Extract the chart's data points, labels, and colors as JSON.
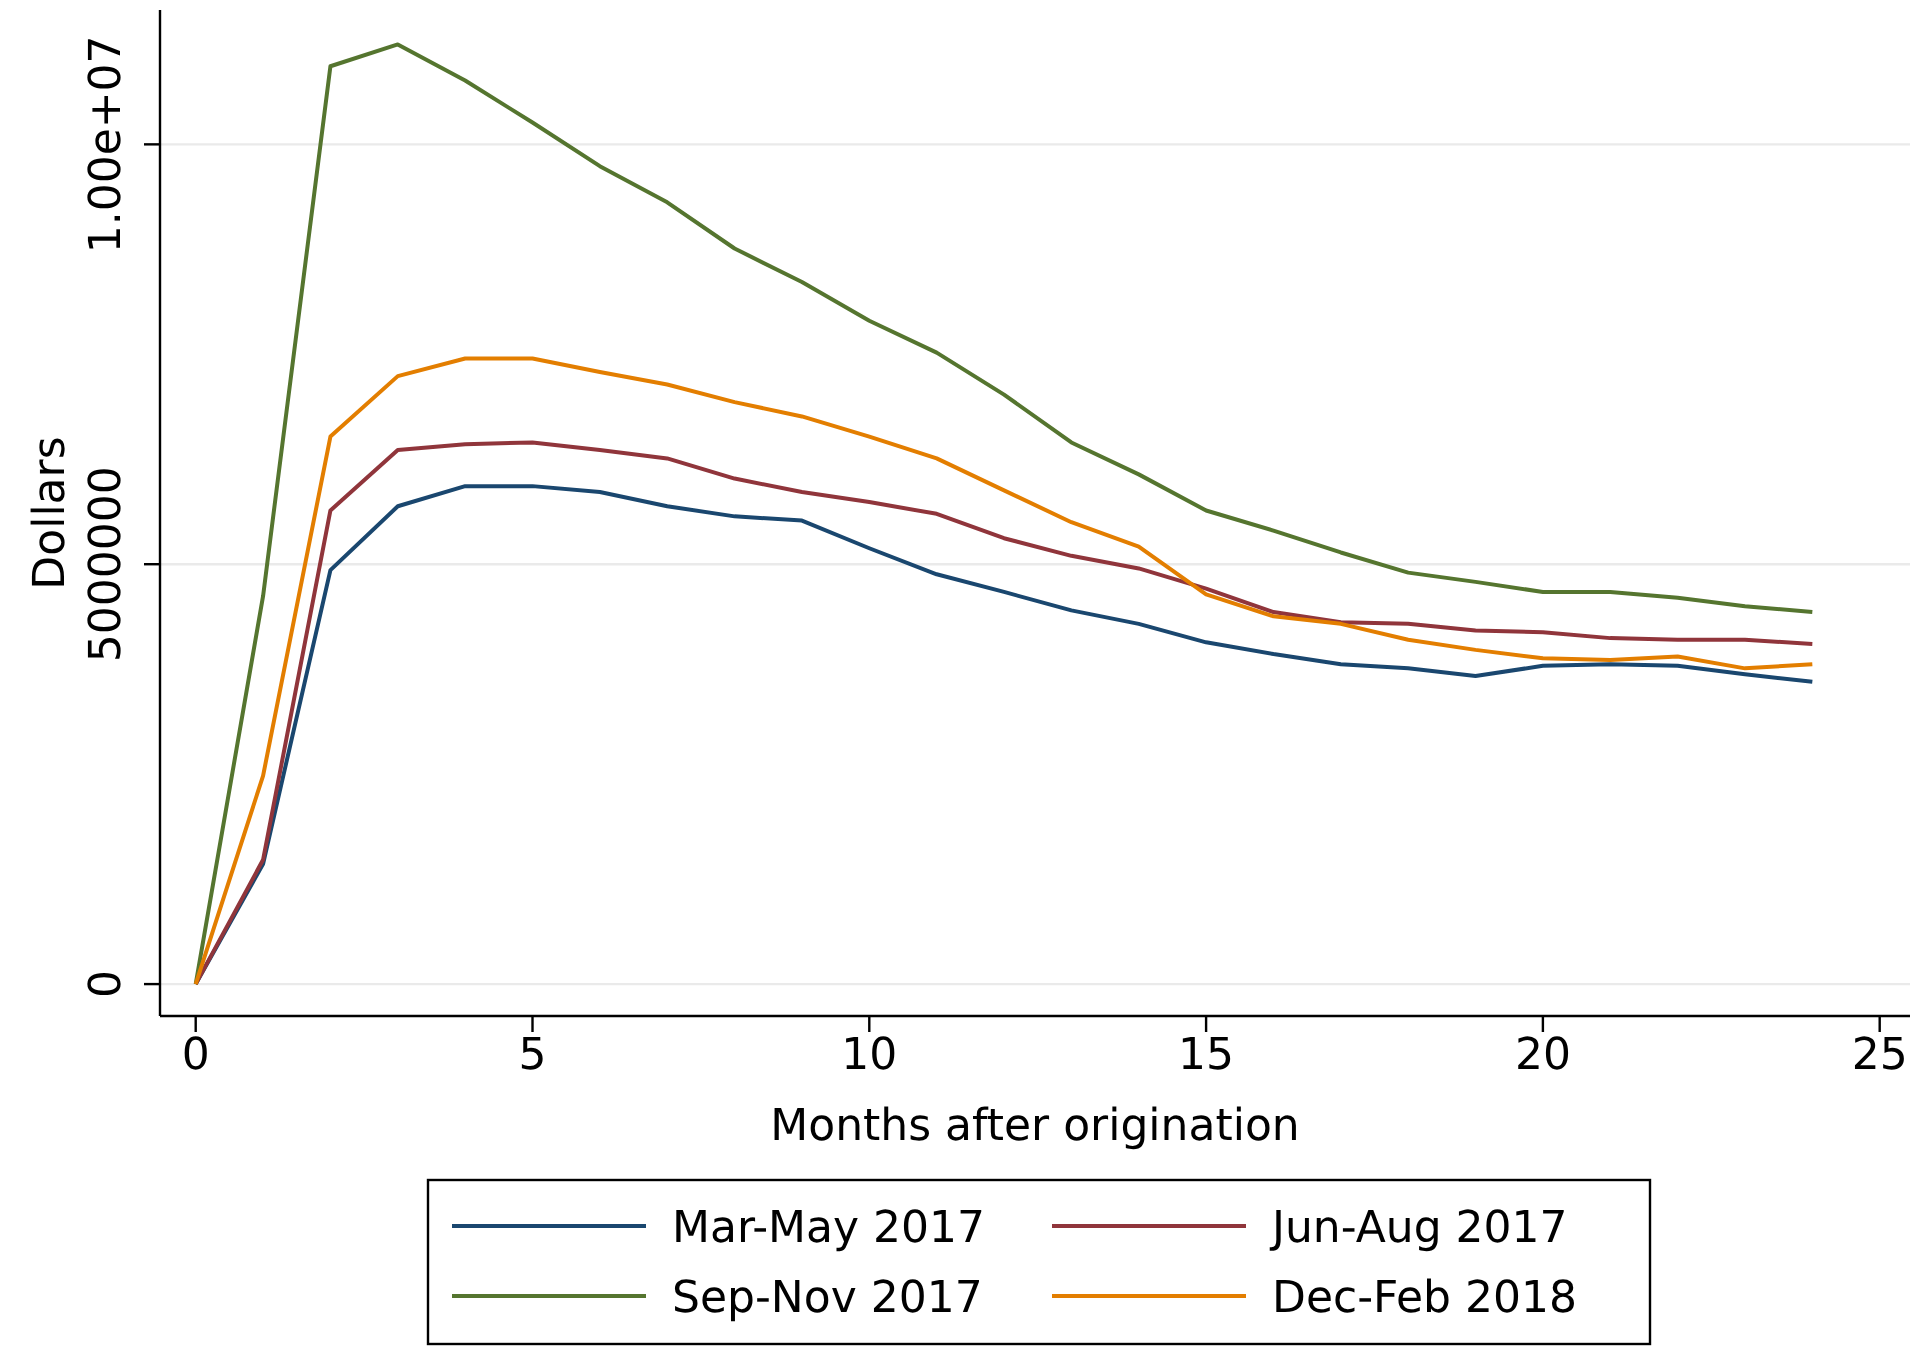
{
  "chart_data": {
    "type": "line",
    "xlabel": "Months after origination",
    "ylabel": "Dollars",
    "x": [
      0,
      1,
      2,
      3,
      4,
      5,
      6,
      7,
      8,
      9,
      10,
      11,
      12,
      13,
      14,
      15,
      16,
      17,
      18,
      19,
      20,
      21,
      22,
      23,
      24
    ],
    "series": [
      {
        "name": "Mar-May 2017",
        "color": "#1a476f",
        "values": [
          0,
          1430000,
          4930000,
          5690000,
          5930000,
          5930000,
          5860000,
          5690000,
          5570000,
          5520000,
          5190000,
          4880000,
          4670000,
          4450000,
          4290000,
          4070000,
          3930000,
          3810000,
          3760000,
          3670000,
          3790000,
          3810000,
          3790000,
          3690000,
          3600000
        ]
      },
      {
        "name": "Jun-Aug 2017",
        "color": "#90353b",
        "values": [
          0,
          1480000,
          5640000,
          6360000,
          6430000,
          6450000,
          6360000,
          6260000,
          6020000,
          5860000,
          5740000,
          5600000,
          5310000,
          5100000,
          4950000,
          4710000,
          4430000,
          4310000,
          4290000,
          4210000,
          4190000,
          4120000,
          4100000,
          4100000,
          4050000
        ]
      },
      {
        "name": "Sep-Nov 2017",
        "color": "#55752f",
        "values": [
          0,
          4620000,
          10930000,
          11190000,
          10760000,
          10260000,
          9740000,
          9310000,
          8760000,
          8360000,
          7900000,
          7520000,
          7020000,
          6450000,
          6070000,
          5640000,
          5400000,
          5140000,
          4900000,
          4790000,
          4670000,
          4670000,
          4600000,
          4500000,
          4430000
        ]
      },
      {
        "name": "Dec-Feb 2018",
        "color": "#e37e00",
        "values": [
          0,
          2480000,
          6520000,
          7240000,
          7450000,
          7450000,
          7290000,
          7140000,
          6930000,
          6760000,
          6520000,
          6260000,
          5880000,
          5500000,
          5210000,
          4640000,
          4380000,
          4290000,
          4100000,
          3980000,
          3880000,
          3860000,
          3900000,
          3760000,
          3810000
        ]
      }
    ],
    "xlim": [
      -0.53,
      25.45
    ],
    "xticks": [
      0,
      5,
      10,
      15,
      20,
      25
    ],
    "ylim": [
      -380000,
      11600000
    ],
    "yticks": [
      0,
      5000000,
      {
        "value": 10000000,
        "label": "1.00e+07"
      }
    ],
    "grid": "y",
    "legend": "bottom",
    "marker": "none",
    "line_style": "solid"
  }
}
